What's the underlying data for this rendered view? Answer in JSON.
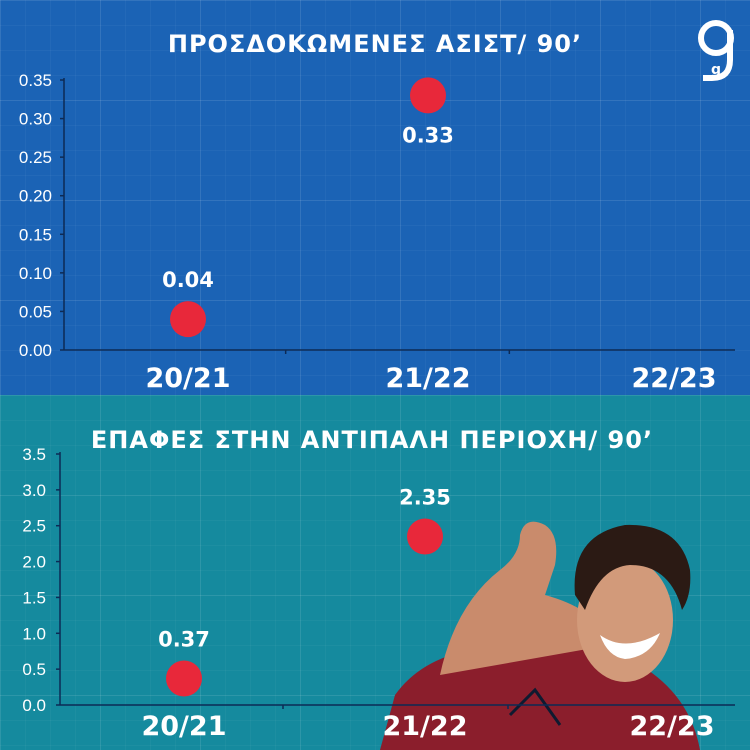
{
  "brand": {
    "logo_text": "g"
  },
  "colors": {
    "point": "#e8283a",
    "top_bg": "#1b63b5",
    "bottom_bg": "#158a9e"
  },
  "chart_data": [
    {
      "type": "scatter",
      "title": "ΠΡΟΣΔΟΚΩΜΕΝΕΣ ΑΣΙΣΤ/ 90’",
      "categories": [
        "20/21",
        "21/22",
        "22/23"
      ],
      "values": [
        0.04,
        0.33,
        null
      ],
      "value_labels": [
        "0.04",
        "0.33",
        ""
      ],
      "yticks": [
        "0.00",
        "0.05",
        "0.10",
        "0.15",
        "0.20",
        "0.25",
        "0.30",
        "0.35"
      ],
      "ylim": [
        0,
        0.35
      ],
      "grid": true
    },
    {
      "type": "scatter",
      "title": "ΕΠΑΦΕΣ ΣΤΗΝ ΑΝΤΙΠΑΛΗ ΠΕΡΙΟΧΗ/ 90’",
      "categories": [
        "20/21",
        "21/22",
        "22/23"
      ],
      "values": [
        0.37,
        2.35,
        null
      ],
      "value_labels": [
        "0.37",
        "2.35",
        ""
      ],
      "yticks": [
        "0.0",
        "0.5",
        "1.0",
        "1.5",
        "2.0",
        "2.5",
        "3.0",
        "3.5"
      ],
      "ylim": [
        0,
        3.5
      ],
      "grid": true
    }
  ]
}
